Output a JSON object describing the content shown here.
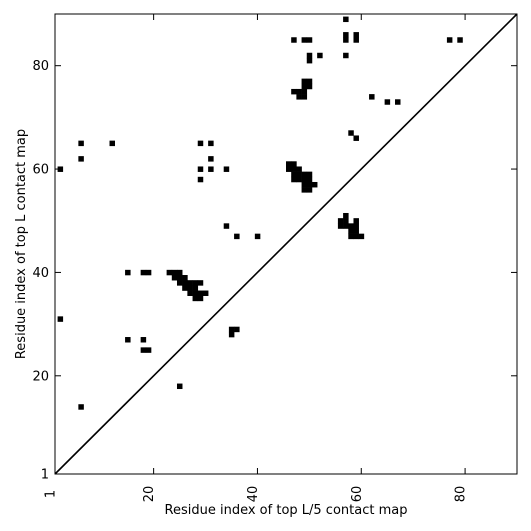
{
  "chart_data": {
    "type": "scatter",
    "marker": "square",
    "xlabel": "Residue index of top L/5 contact map",
    "ylabel": "Residue index of top L contact map",
    "xlim": [
      1,
      90
    ],
    "ylim": [
      1,
      90
    ],
    "x_ticks": [
      1,
      20,
      40,
      60,
      80
    ],
    "y_ticks": [
      1,
      20,
      40,
      60,
      80
    ],
    "grid": false,
    "diagonal": true,
    "colors": {
      "marker": "#000000",
      "axes": "#000000",
      "background": "#ffffff"
    },
    "points": [
      [
        57,
        89
      ],
      [
        47,
        85
      ],
      [
        49,
        85
      ],
      [
        50,
        85
      ],
      [
        57,
        86
      ],
      [
        57,
        85
      ],
      [
        59,
        86
      ],
      [
        59,
        85
      ],
      [
        77,
        85
      ],
      [
        79,
        85
      ],
      [
        50,
        82
      ],
      [
        50,
        81
      ],
      [
        52,
        82
      ],
      [
        57,
        82
      ],
      [
        49,
        77
      ],
      [
        50,
        77
      ],
      [
        49,
        76
      ],
      [
        50,
        76
      ],
      [
        47,
        75
      ],
      [
        48,
        75
      ],
      [
        49,
        75
      ],
      [
        48,
        74
      ],
      [
        49,
        74
      ],
      [
        62,
        74
      ],
      [
        65,
        73
      ],
      [
        67,
        73
      ],
      [
        58,
        67
      ],
      [
        59,
        66
      ],
      [
        6,
        65
      ],
      [
        12,
        65
      ],
      [
        29,
        65
      ],
      [
        31,
        65
      ],
      [
        6,
        62
      ],
      [
        31,
        62
      ],
      [
        2,
        60
      ],
      [
        29,
        60
      ],
      [
        31,
        60
      ],
      [
        34,
        60
      ],
      [
        29,
        58
      ],
      [
        46,
        61
      ],
      [
        47,
        61
      ],
      [
        46,
        60
      ],
      [
        47,
        60
      ],
      [
        48,
        60
      ],
      [
        47,
        59
      ],
      [
        48,
        59
      ],
      [
        49,
        59
      ],
      [
        50,
        59
      ],
      [
        47,
        58
      ],
      [
        48,
        58
      ],
      [
        49,
        58
      ],
      [
        50,
        58
      ],
      [
        49,
        57
      ],
      [
        50,
        57
      ],
      [
        51,
        57
      ],
      [
        49,
        56
      ],
      [
        50,
        56
      ],
      [
        57,
        51
      ],
      [
        56,
        50
      ],
      [
        57,
        50
      ],
      [
        59,
        50
      ],
      [
        56,
        49
      ],
      [
        57,
        49
      ],
      [
        58,
        49
      ],
      [
        59,
        49
      ],
      [
        58,
        48
      ],
      [
        59,
        48
      ],
      [
        58,
        47
      ],
      [
        59,
        47
      ],
      [
        60,
        47
      ],
      [
        34,
        49
      ],
      [
        36,
        47
      ],
      [
        40,
        47
      ],
      [
        15,
        40
      ],
      [
        18,
        40
      ],
      [
        19,
        40
      ],
      [
        23,
        40
      ],
      [
        24,
        40
      ],
      [
        25,
        40
      ],
      [
        24,
        39
      ],
      [
        25,
        39
      ],
      [
        26,
        39
      ],
      [
        25,
        38
      ],
      [
        26,
        38
      ],
      [
        27,
        38
      ],
      [
        28,
        38
      ],
      [
        29,
        38
      ],
      [
        26,
        37
      ],
      [
        27,
        37
      ],
      [
        28,
        37
      ],
      [
        27,
        36
      ],
      [
        28,
        36
      ],
      [
        29,
        36
      ],
      [
        30,
        36
      ],
      [
        28,
        35
      ],
      [
        29,
        35
      ],
      [
        2,
        31
      ],
      [
        35,
        29
      ],
      [
        36,
        29
      ],
      [
        35,
        28
      ],
      [
        15,
        27
      ],
      [
        18,
        27
      ],
      [
        18,
        25
      ],
      [
        19,
        25
      ],
      [
        25,
        18
      ],
      [
        6,
        14
      ]
    ]
  }
}
